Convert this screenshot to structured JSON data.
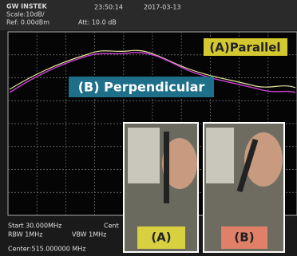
{
  "header": {
    "brand": "GW INSTEK",
    "time": "23:50:14",
    "date": "2017-03-13",
    "scale": "Scale:10dB/",
    "ref": "Ref: 0.00dBm",
    "att": "Att: 10.0 dB"
  },
  "labels": {
    "a": "(A)Parallel",
    "b": "(B) Perpendicular"
  },
  "footer": {
    "start": "Start 30.000MHz",
    "cent": "Cent",
    "rbw": "RBW 1MHz",
    "vbw": "VBW 1MHz",
    "center": "Center:515.000000 MHz"
  },
  "photos": [
    {
      "label": "(A)"
    },
    {
      "label": "(B)"
    }
  ]
}
